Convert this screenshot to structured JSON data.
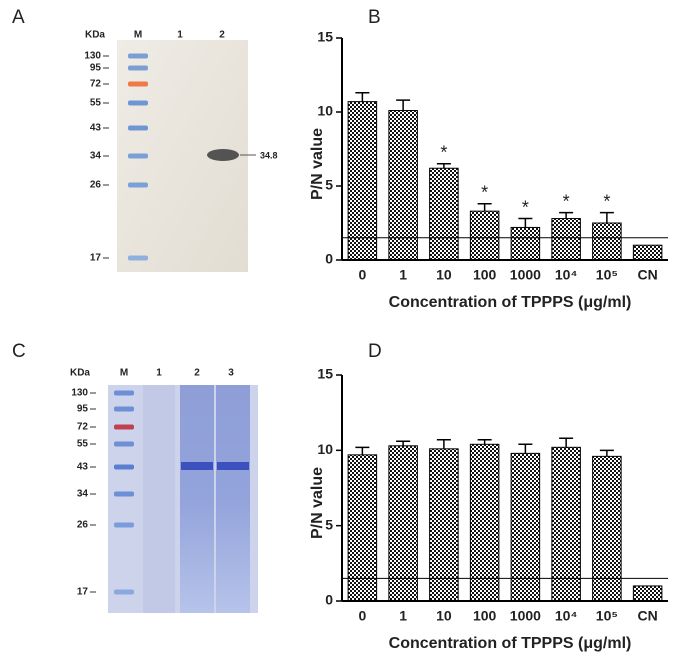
{
  "panel_labels": [
    "A",
    "B",
    "C",
    "D"
  ],
  "gels": [
    {
      "unit": "KDa",
      "lanes": [
        "M",
        "1",
        "2"
      ],
      "markers": [
        130,
        95,
        72,
        55,
        43,
        34,
        26,
        17
      ],
      "band_label": "34.8"
    },
    {
      "unit": "KDa",
      "lanes": [
        "M",
        "1",
        "2",
        "3"
      ],
      "markers": [
        130,
        95,
        72,
        55,
        43,
        34,
        26,
        17
      ]
    }
  ],
  "chart_data": [
    {
      "type": "bar",
      "x_label": "Concentration of TPPPS (μg/ml)",
      "y_label": "P/N value",
      "categories": [
        "0",
        "1",
        "10",
        "100",
        "1000",
        "10⁴",
        "10⁵",
        "CN"
      ],
      "values": [
        10.7,
        10.1,
        6.2,
        3.3,
        2.2,
        2.8,
        2.5,
        1.0
      ],
      "errors": [
        0.6,
        0.7,
        0.3,
        0.5,
        0.6,
        0.4,
        0.7,
        null
      ],
      "bar_labels": [
        null,
        null,
        "*",
        "*",
        "*",
        "*",
        "*",
        null
      ],
      "reference_line": 1.5,
      "ylim": [
        0,
        15
      ],
      "yticks": [
        0,
        5,
        10,
        15
      ]
    },
    {
      "type": "bar",
      "x_label": "Concentration of TPPPS (μg/ml)",
      "y_label": "P/N value",
      "categories": [
        "0",
        "1",
        "10",
        "100",
        "1000",
        "10⁴",
        "10⁵",
        "CN"
      ],
      "values": [
        9.7,
        10.3,
        10.1,
        10.4,
        9.8,
        10.2,
        9.6,
        1.0
      ],
      "errors": [
        0.5,
        0.3,
        0.6,
        0.3,
        0.6,
        0.6,
        0.4,
        null
      ],
      "reference_line": 1.5,
      "ylim": [
        0,
        15
      ],
      "yticks": [
        0,
        5,
        10,
        15
      ]
    }
  ]
}
